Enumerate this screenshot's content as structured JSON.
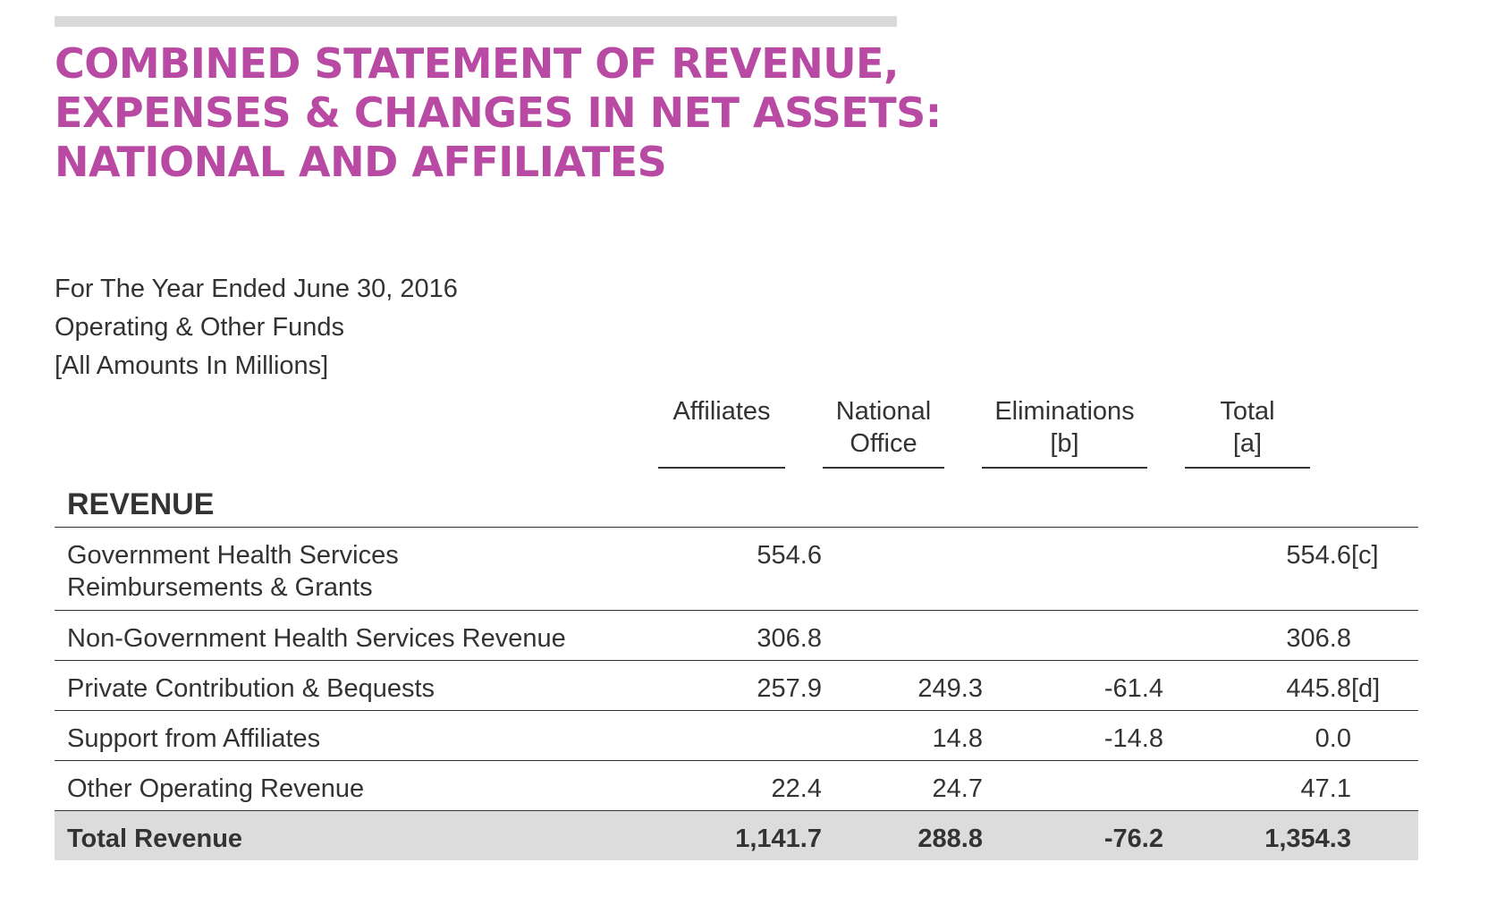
{
  "header": {
    "title_lines": [
      "COMBINED STATEMENT OF REVENUE,",
      "EXPENSES & CHANGES IN NET ASSETS:",
      "NATIONAL AND AFFILIATES"
    ],
    "subtitle_lines": [
      "For The Year Ended June 30, 2016",
      "Operating & Other Funds",
      "[All Amounts In Millions]"
    ]
  },
  "columns": {
    "affiliates": {
      "line1": "Affiliates",
      "line2": ""
    },
    "national": {
      "line1": "National",
      "line2": "Office"
    },
    "eliminations": {
      "line1": "Eliminations",
      "line2": "[b]"
    },
    "total": {
      "line1": "Total",
      "line2": "[a]"
    }
  },
  "section": "REVENUE",
  "rows": [
    {
      "label_line1": "Government Health Services",
      "label_line2": "Reimbursements & Grants",
      "affiliates": "554.6",
      "national": "",
      "eliminations": "",
      "total": "554.6",
      "note": "[c]"
    },
    {
      "label_line1": "Non-Government Health Services Revenue",
      "label_line2": "",
      "affiliates": "306.8",
      "national": "",
      "eliminations": "",
      "total": "306.8",
      "note": ""
    },
    {
      "label_line1": "Private Contribution & Bequests",
      "label_line2": "",
      "affiliates": "257.9",
      "national": "249.3",
      "eliminations": "-61.4",
      "total": "445.8",
      "note": "[d]"
    },
    {
      "label_line1": "Support from Affiliates",
      "label_line2": "",
      "affiliates": "",
      "national": "14.8",
      "eliminations": "-14.8",
      "total": "0.0",
      "note": ""
    },
    {
      "label_line1": "Other Operating Revenue",
      "label_line2": "",
      "affiliates": "22.4",
      "national": "24.7",
      "eliminations": "",
      "total": "47.1",
      "note": ""
    }
  ],
  "total_row": {
    "label": "Total Revenue",
    "affiliates": "1,141.7",
    "national": "288.8",
    "eliminations": "-76.2",
    "total": "1,354.3"
  },
  "colors": {
    "title": "#b94aa3",
    "text": "#333333",
    "total_row_bg": "#dcdcdc",
    "top_rule": "#d9d9d9"
  }
}
